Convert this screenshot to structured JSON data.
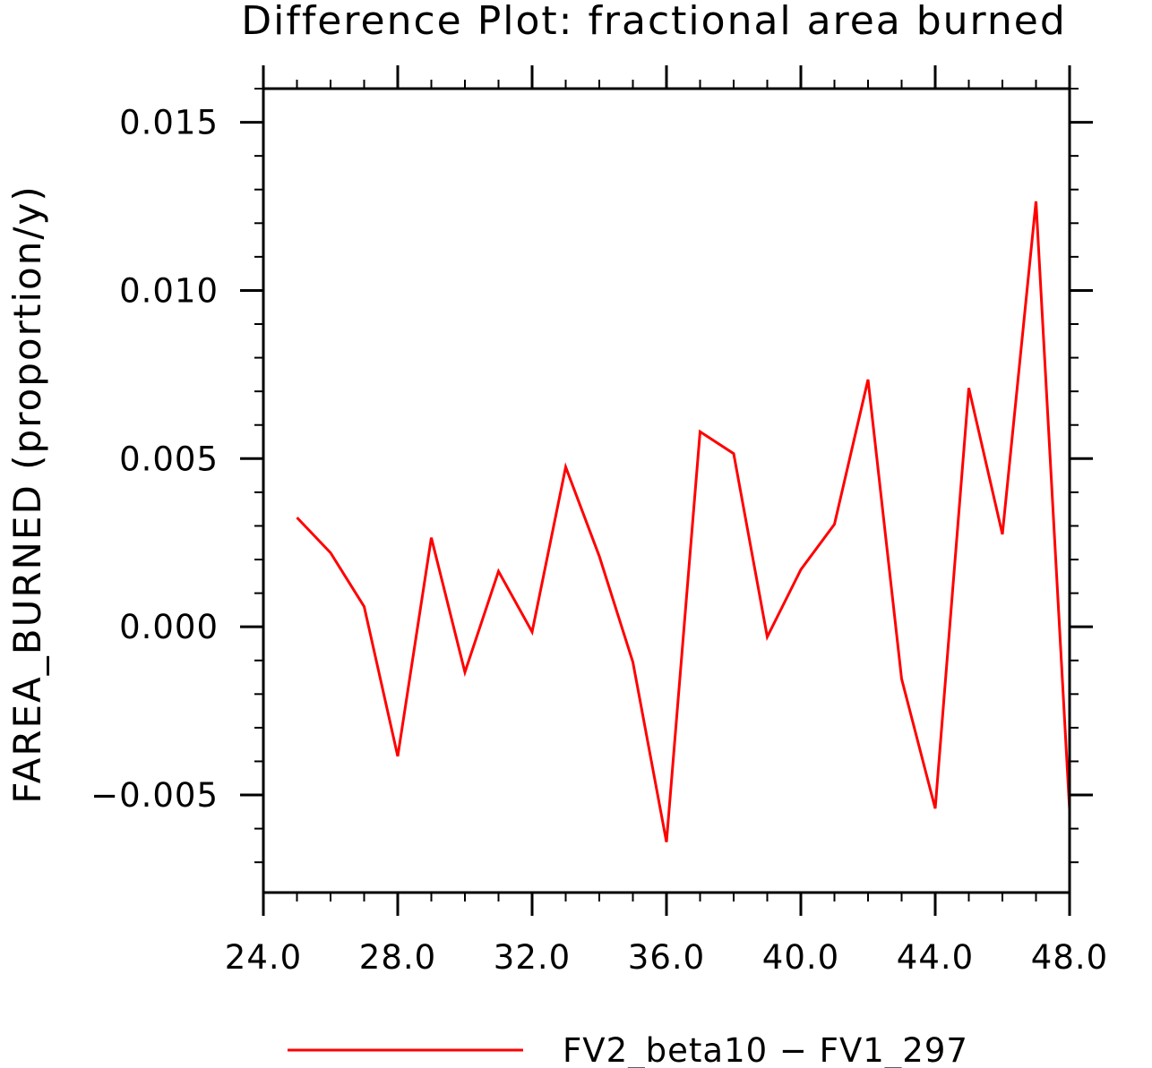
{
  "chart_data": {
    "type": "line",
    "title": "Difference Plot: fractional area burned",
    "ylabel": "FAREA_BURNED   (proportion/y)",
    "xlabel": "",
    "xlim": [
      24.0,
      48.0
    ],
    "ylim": [
      -0.0079,
      0.016
    ],
    "x_ticks": [
      24.0,
      28.0,
      32.0,
      36.0,
      40.0,
      44.0,
      48.0
    ],
    "x_tick_labels": [
      "24.0",
      "28.0",
      "32.0",
      "36.0",
      "40.0",
      "44.0",
      "48.0"
    ],
    "x_minor_step": 1.0,
    "y_ticks": [
      -0.005,
      0.0,
      0.005,
      0.01,
      0.015
    ],
    "y_tick_labels": [
      "−0.005",
      "0.000",
      "0.005",
      "0.010",
      "0.015"
    ],
    "y_minor_step": 0.001,
    "grid": false,
    "legend_position": "bottom",
    "series": [
      {
        "name": "FV2_beta10 − FV1_297",
        "color": "#ff0000",
        "x": [
          25,
          26,
          27,
          28,
          29,
          30,
          31,
          32,
          33,
          34,
          35,
          36,
          37,
          38,
          39,
          40,
          41,
          42,
          43,
          44,
          45,
          46,
          47,
          48
        ],
        "y": [
          0.00325,
          0.0022,
          0.0006,
          -0.00385,
          0.00265,
          -0.00135,
          0.00165,
          -0.00015,
          0.00475,
          0.0021,
          -0.00105,
          -0.0064,
          0.0058,
          0.00515,
          -0.0003,
          0.0017,
          0.00305,
          0.00735,
          -0.00155,
          -0.0054,
          0.0071,
          0.00275,
          0.01265,
          -0.00545
        ]
      }
    ]
  }
}
